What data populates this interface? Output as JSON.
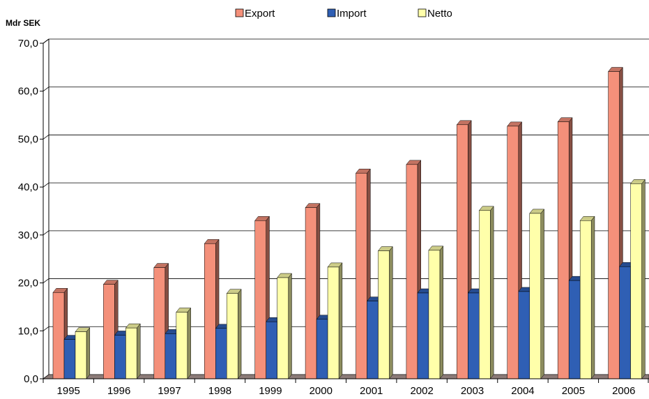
{
  "chart_data": {
    "type": "bar",
    "title": "",
    "ylabel": "Mdr SEK",
    "xlabel": "",
    "categories": [
      "1995",
      "1996",
      "1997",
      "1998",
      "1999",
      "2000",
      "2001",
      "2002",
      "2003",
      "2004",
      "2005",
      "2006"
    ],
    "series": [
      {
        "name": "Export",
        "color": "#f4907a",
        "values": [
          18.0,
          19.7,
          23.2,
          28.2,
          33.0,
          35.7,
          42.9,
          44.7,
          53.0,
          52.7,
          53.6,
          64.1
        ]
      },
      {
        "name": "Import",
        "color": "#2f5fb4",
        "values": [
          8.2,
          9.1,
          9.4,
          10.5,
          11.9,
          12.4,
          16.2,
          17.9,
          17.9,
          18.2,
          20.5,
          23.4
        ]
      },
      {
        "name": "Netto",
        "color": "#ffffaa",
        "values": [
          9.8,
          10.6,
          13.9,
          17.8,
          21.1,
          23.3,
          26.7,
          26.8,
          35.1,
          34.5,
          33.0,
          40.7
        ]
      }
    ],
    "ylim": [
      0,
      70
    ],
    "yticks": [
      "0,0",
      "10,0",
      "20,0",
      "30,0",
      "40,0",
      "50,0",
      "60,0",
      "70,0"
    ],
    "grid": true,
    "legend_position": "top-center",
    "floor_color": "#8c7b78",
    "bar_side_color_dark": "#7a5a30"
  }
}
